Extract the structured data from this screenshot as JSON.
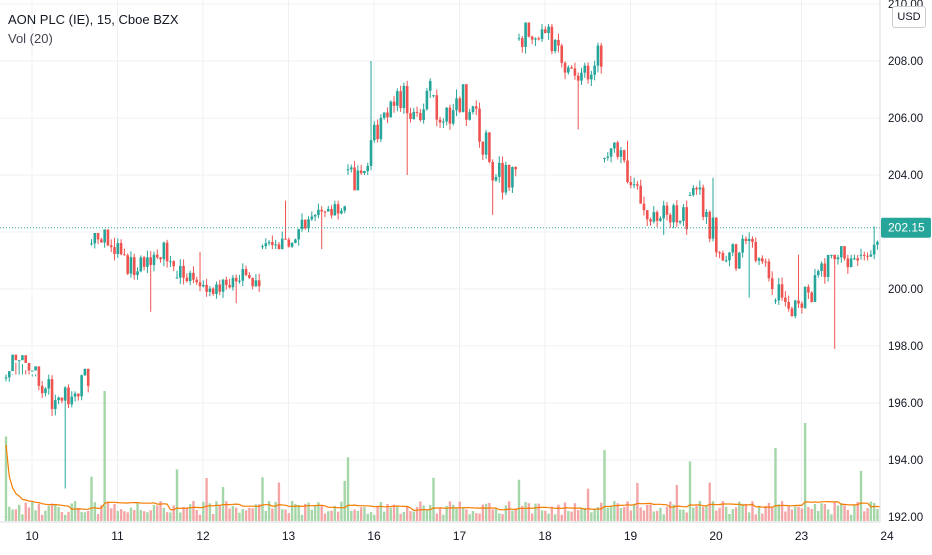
{
  "legend": {
    "title": "AON PLC (IE), 15, Cboe BZX",
    "indicator": "Vol (20)"
  },
  "currency": "USD",
  "last_price_label": "202.15",
  "colors": {
    "up": "#26a69a",
    "down": "#ef5350",
    "up_volume": "#a5d6a7",
    "down_volume": "#f4a6a6",
    "volume_ma": "#f57c00",
    "grid": "#eef0f3",
    "last_price": "#26a69a",
    "axis_text": "#131722"
  },
  "chart_data": {
    "type": "candlestick",
    "title": "AON PLC (IE), 15, Cboe BZX",
    "interval": "15",
    "currency": "USD",
    "y_axis": {
      "range": [
        191.8,
        210.0
      ],
      "ticks": [
        "192.00",
        "194.00",
        "196.00",
        "198.00",
        "200.00",
        "202.00",
        "204.00",
        "206.00",
        "208.00",
        "210.00"
      ],
      "position": "right"
    },
    "x_axis": {
      "ticks": [
        "10",
        "11",
        "12",
        "13",
        "16",
        "17",
        "18",
        "19",
        "20",
        "23",
        "24"
      ]
    },
    "grid": true,
    "last_price": 202.15,
    "volume_indicator": {
      "name": "Vol (20)",
      "moving_average": true
    },
    "sessions": [
      {
        "date": "10",
        "open": 196.9,
        "close": 196.6,
        "high": 197.0,
        "low": 193.0
      },
      {
        "date": "11",
        "open": 201.6,
        "close": 200.8,
        "high": 201.8,
        "low": 199.2
      },
      {
        "date": "12",
        "open": 200.4,
        "close": 200.1,
        "high": 201.3,
        "low": 199.5
      },
      {
        "date": "13",
        "open": 201.5,
        "close": 202.9,
        "high": 203.1,
        "low": 201.4
      },
      {
        "date": "16",
        "open": 204.2,
        "close": 207.3,
        "high": 208.0,
        "low": 204.0
      },
      {
        "date": "17",
        "open": 206.8,
        "close": 204.2,
        "high": 207.0,
        "low": 202.6
      },
      {
        "date": "18",
        "open": 208.8,
        "close": 207.8,
        "high": 209.3,
        "low": 205.6
      },
      {
        "date": "19",
        "open": 204.6,
        "close": 202.1,
        "high": 205.2,
        "low": 201.9
      },
      {
        "date": "20",
        "open": 203.3,
        "close": 200.0,
        "high": 203.9,
        "low": 199.7
      },
      {
        "date": "23",
        "open": 199.6,
        "close": 201.0,
        "high": 201.2,
        "low": 197.9
      },
      {
        "date": "24",
        "open": 201.2,
        "close": 202.15,
        "high": 202.2,
        "low": 201.0
      }
    ]
  }
}
